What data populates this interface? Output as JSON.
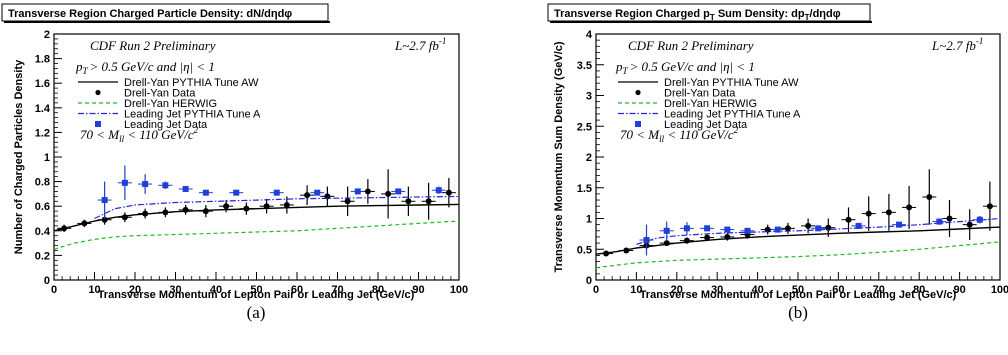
{
  "chart_data": [
    {
      "type": "scatter",
      "panel_caption": "(a)",
      "title": "Transverse Region Charged Particle Density: dN/dηdφ",
      "experiment": "CDF Run 2 Preliminary",
      "luminosity": "L~2.7 fb",
      "luminosity_exp": "-1",
      "cuts": "p",
      "cuts_sub": "T",
      "cuts_rest": "> 0.5  GeV/c and |η| < 1",
      "mass_window": "70 < M",
      "mass_sub": "ll",
      "mass_rest": " < 110 GeV/c",
      "mass_exp": "2",
      "xlabel": "Transverse Momentum of Lepton Pair or Leading Jet (GeV/c)",
      "ylabel": "Number of Charged Particles Density",
      "xlim": [
        0,
        100
      ],
      "ylim": [
        0,
        2
      ],
      "x_ticks": [
        "0",
        "10",
        "20",
        "30",
        "40",
        "50",
        "60",
        "70",
        "80",
        "90",
        "100"
      ],
      "y_ticks": [
        "0",
        "0.2",
        "0.4",
        "0.6",
        "0.8",
        "1",
        "1.2",
        "1.4",
        "1.6",
        "1.8",
        "2"
      ],
      "legend": [
        "Drell-Yan PYTHIA Tune AW",
        "Drell-Yan Data",
        "Drell-Yan HERWIG",
        "Leading Jet PYTHIA Tune A",
        "Leading Jet Data"
      ],
      "series": [
        {
          "name": "Drell-Yan PYTHIA Tune AW",
          "kind": "line",
          "color": "#000000",
          "x": [
            0,
            5,
            10,
            15,
            20,
            30,
            40,
            50,
            60,
            70,
            80,
            90,
            100
          ],
          "y": [
            0.4,
            0.44,
            0.48,
            0.51,
            0.53,
            0.555,
            0.57,
            0.58,
            0.59,
            0.6,
            0.605,
            0.61,
            0.615
          ]
        },
        {
          "name": "Drell-Yan Data",
          "kind": "points",
          "color": "#000000",
          "x": [
            2.5,
            7.5,
            12.5,
            17.5,
            22.5,
            27.5,
            32.5,
            37.5,
            42.5,
            47.5,
            52.5,
            57.5,
            62.5,
            67.5,
            72.5,
            77.5,
            82.5,
            87.5,
            92.5,
            97.5
          ],
          "y": [
            0.42,
            0.46,
            0.49,
            0.51,
            0.54,
            0.55,
            0.57,
            0.56,
            0.6,
            0.58,
            0.6,
            0.61,
            0.69,
            0.68,
            0.64,
            0.72,
            0.7,
            0.64,
            0.64,
            0.71
          ],
          "err": [
            0.03,
            0.03,
            0.04,
            0.04,
            0.04,
            0.04,
            0.04,
            0.05,
            0.05,
            0.05,
            0.06,
            0.07,
            0.08,
            0.08,
            0.12,
            0.1,
            0.2,
            0.12,
            0.15,
            0.12
          ]
        },
        {
          "name": "Drell-Yan HERWIG",
          "kind": "dashed",
          "color": "#22bb22",
          "x": [
            0,
            5,
            10,
            15,
            20,
            30,
            40,
            50,
            60,
            70,
            80,
            90,
            100
          ],
          "y": [
            0.25,
            0.3,
            0.33,
            0.35,
            0.36,
            0.37,
            0.38,
            0.39,
            0.4,
            0.42,
            0.44,
            0.46,
            0.48
          ]
        },
        {
          "name": "Leading Jet PYTHIA Tune A",
          "kind": "dashdot",
          "color": "#2222dd",
          "x": [
            10,
            15,
            20,
            30,
            40,
            50,
            60,
            70,
            80,
            90,
            100
          ],
          "y": [
            0.5,
            0.58,
            0.61,
            0.63,
            0.64,
            0.65,
            0.66,
            0.665,
            0.67,
            0.675,
            0.68
          ]
        },
        {
          "name": "Leading Jet Data",
          "kind": "squares",
          "color": "#1f3fd6",
          "x": [
            12.5,
            17.5,
            22.5,
            27.5,
            32.5,
            37.5,
            45,
            55,
            65,
            75,
            85,
            95
          ],
          "y": [
            0.65,
            0.79,
            0.78,
            0.77,
            0.74,
            0.71,
            0.71,
            0.71,
            0.71,
            0.72,
            0.72,
            0.73
          ],
          "err": [
            0.15,
            0.14,
            0.08,
            0.03,
            0.02,
            0.02,
            0.02,
            0.02,
            0.02,
            0.02,
            0.02,
            0.03
          ]
        }
      ]
    },
    {
      "type": "scatter",
      "panel_caption": "(b)",
      "title": "Transverse Region Charged p",
      "title_sub": "T",
      "title_rest": " Sum Density: dp",
      "title_sub2": "T",
      "title_rest2": "/dηdφ",
      "experiment": "CDF Run 2 Preliminary",
      "luminosity": "L~2.7 fb",
      "luminosity_exp": "-1",
      "cuts": "p",
      "cuts_sub": "T",
      "cuts_rest": "> 0.5  GeV/c and |η| < 1",
      "mass_window": "70 < M",
      "mass_sub": "ll",
      "mass_rest": " < 110 GeV/c",
      "mass_exp": "2",
      "xlabel": "Transverse Momentum of Lepton Pair or Leading Jet (GeV/c)",
      "ylabel": "Transverse Momentum Sum Density (GeV/c)",
      "xlim": [
        0,
        100
      ],
      "ylim": [
        0,
        4
      ],
      "x_ticks": [
        "0",
        "10",
        "20",
        "30",
        "40",
        "50",
        "60",
        "70",
        "80",
        "90",
        "100"
      ],
      "y_ticks": [
        "0",
        "0.5",
        "1",
        "1.5",
        "2",
        "2.5",
        "3",
        "3.5",
        "4"
      ],
      "legend": [
        "Drell-Yan PYTHIA Tune AW",
        "Drell-Yan Data",
        "Drell-Yan HERWIG",
        "Leading Jet PYTHIA Tune A",
        "Leading Jet Data"
      ],
      "series": [
        {
          "name": "Drell-Yan PYTHIA Tune AW",
          "kind": "line",
          "color": "#000000",
          "x": [
            0,
            5,
            10,
            15,
            20,
            30,
            40,
            50,
            60,
            70,
            80,
            90,
            100
          ],
          "y": [
            0.42,
            0.46,
            0.52,
            0.56,
            0.6,
            0.66,
            0.7,
            0.73,
            0.76,
            0.78,
            0.8,
            0.83,
            0.86
          ]
        },
        {
          "name": "Drell-Yan Data",
          "kind": "points",
          "color": "#000000",
          "x": [
            2.5,
            7.5,
            12.5,
            17.5,
            22.5,
            27.5,
            32.5,
            37.5,
            42.5,
            47.5,
            52.5,
            57.5,
            62.5,
            67.5,
            72.5,
            77.5,
            82.5,
            87.5,
            92.5,
            97.5
          ],
          "y": [
            0.43,
            0.48,
            0.56,
            0.6,
            0.64,
            0.69,
            0.7,
            0.74,
            0.82,
            0.84,
            0.88,
            0.85,
            0.98,
            1.08,
            1.1,
            1.18,
            1.35,
            1.0,
            0.9,
            1.2
          ],
          "err": [
            0.03,
            0.03,
            0.04,
            0.04,
            0.05,
            0.05,
            0.06,
            0.07,
            0.08,
            0.09,
            0.12,
            0.15,
            0.2,
            0.28,
            0.3,
            0.35,
            0.45,
            0.3,
            0.25,
            0.4
          ]
        },
        {
          "name": "Drell-Yan HERWIG",
          "kind": "dashed",
          "color": "#22bb22",
          "x": [
            0,
            5,
            10,
            15,
            20,
            30,
            40,
            50,
            60,
            70,
            80,
            90,
            100
          ],
          "y": [
            0.2,
            0.24,
            0.28,
            0.3,
            0.32,
            0.34,
            0.36,
            0.38,
            0.41,
            0.45,
            0.5,
            0.56,
            0.62
          ]
        },
        {
          "name": "Leading Jet PYTHIA Tune A",
          "kind": "dashdot",
          "color": "#2222dd",
          "x": [
            10,
            15,
            20,
            30,
            40,
            50,
            60,
            70,
            80,
            90,
            100
          ],
          "y": [
            0.58,
            0.68,
            0.72,
            0.76,
            0.78,
            0.8,
            0.83,
            0.86,
            0.9,
            0.95,
            1.0
          ]
        },
        {
          "name": "Leading Jet Data",
          "kind": "squares",
          "color": "#1f3fd6",
          "x": [
            12.5,
            17.5,
            22.5,
            27.5,
            32.5,
            37.5,
            45,
            55,
            65,
            75,
            85,
            95
          ],
          "y": [
            0.65,
            0.8,
            0.84,
            0.84,
            0.82,
            0.8,
            0.82,
            0.84,
            0.88,
            0.9,
            0.95,
            0.98
          ],
          "err": [
            0.25,
            0.15,
            0.1,
            0.05,
            0.04,
            0.04,
            0.04,
            0.04,
            0.04,
            0.04,
            0.05,
            0.06
          ]
        }
      ]
    }
  ]
}
